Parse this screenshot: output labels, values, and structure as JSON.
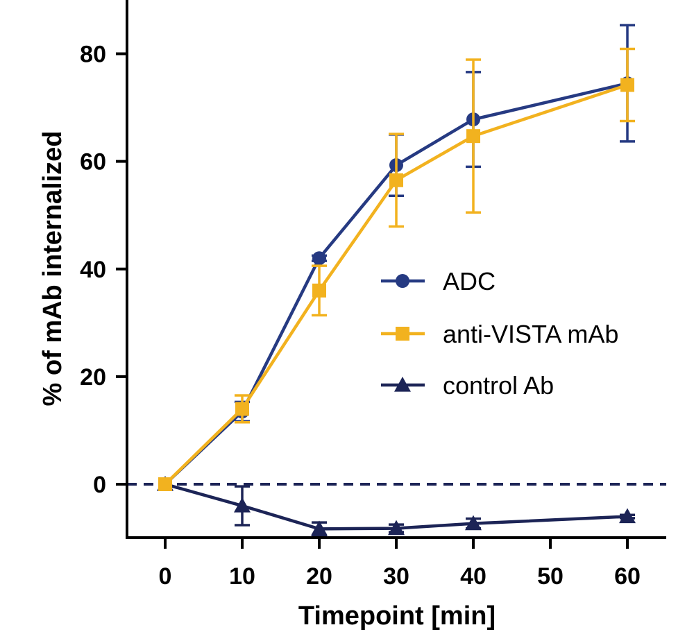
{
  "chart_data": {
    "type": "line",
    "xlabel": "Timepoint [min]",
    "ylabel": "% of mAb internalized",
    "xlim": [
      -5,
      65
    ],
    "ylim": [
      -10,
      90
    ],
    "x_ticks": [
      0,
      10,
      20,
      30,
      40,
      50,
      60
    ],
    "y_ticks": [
      0,
      20,
      40,
      60,
      80
    ],
    "reference_line": {
      "y": 0,
      "style": "dashed",
      "color": "#1c2456"
    },
    "legend_position": "center-right",
    "series": [
      {
        "name": "ADC",
        "marker": "circle",
        "color": "#263a82",
        "points": [
          {
            "x": 0,
            "y": 0,
            "err": 0
          },
          {
            "x": 10,
            "y": 13.5,
            "err": 1.8
          },
          {
            "x": 20,
            "y": 42,
            "err": 0.5
          },
          {
            "x": 30,
            "y": 59.3,
            "err": 5.7
          },
          {
            "x": 40,
            "y": 67.8,
            "err": 8.8
          },
          {
            "x": 60,
            "y": 74.5,
            "err": 10.8
          }
        ]
      },
      {
        "name": "anti-VISTA mAb",
        "marker": "square",
        "color": "#f2b21f",
        "points": [
          {
            "x": 0,
            "y": 0,
            "err": 0
          },
          {
            "x": 10,
            "y": 14,
            "err": 2.5
          },
          {
            "x": 20,
            "y": 36,
            "err": 4.6
          },
          {
            "x": 30,
            "y": 56.5,
            "err": 8.6
          },
          {
            "x": 40,
            "y": 64.7,
            "err": 14.2
          },
          {
            "x": 60,
            "y": 74.2,
            "err": 6.7
          }
        ]
      },
      {
        "name": "control Ab",
        "marker": "triangle",
        "color": "#1c2456",
        "points": [
          {
            "x": 0,
            "y": 0,
            "err": 0
          },
          {
            "x": 10,
            "y": -4,
            "err": 3.6
          },
          {
            "x": 20,
            "y": -8.3,
            "err": 1.2
          },
          {
            "x": 30,
            "y": -8.2,
            "err": 0.7
          },
          {
            "x": 40,
            "y": -7.3,
            "err": 0.9
          },
          {
            "x": 60,
            "y": -6,
            "err": 0.3
          }
        ]
      }
    ]
  }
}
